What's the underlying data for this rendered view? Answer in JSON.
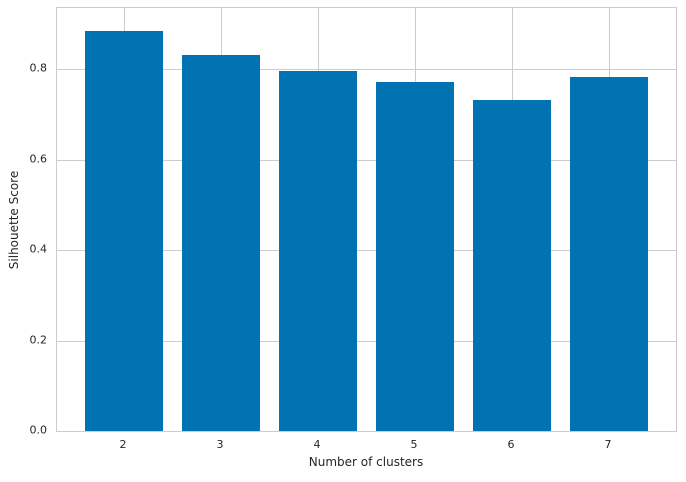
{
  "chart_data": {
    "type": "bar",
    "title": "",
    "xlabel": "Number of clusters",
    "ylabel": "Silhouette Score",
    "categories": [
      "2",
      "3",
      "4",
      "5",
      "6",
      "7"
    ],
    "x_values": [
      2,
      3,
      4,
      5,
      6,
      7
    ],
    "values": [
      0.885,
      0.832,
      0.795,
      0.772,
      0.731,
      0.783
    ],
    "bar_width": 0.8,
    "xlim": [
      1.31,
      7.69
    ],
    "ylim": [
      0,
      0.935
    ],
    "yticks": [
      "0.0",
      "0.2",
      "0.4",
      "0.6",
      "0.8"
    ],
    "ytick_values": [
      0.0,
      0.2,
      0.4,
      0.6,
      0.8
    ],
    "grid": true,
    "legend": "none",
    "colors": {
      "bar": "#0173b2",
      "grid": "#cccccc",
      "spine": "#cccccc",
      "text": "#262626",
      "background": "#ffffff"
    }
  }
}
